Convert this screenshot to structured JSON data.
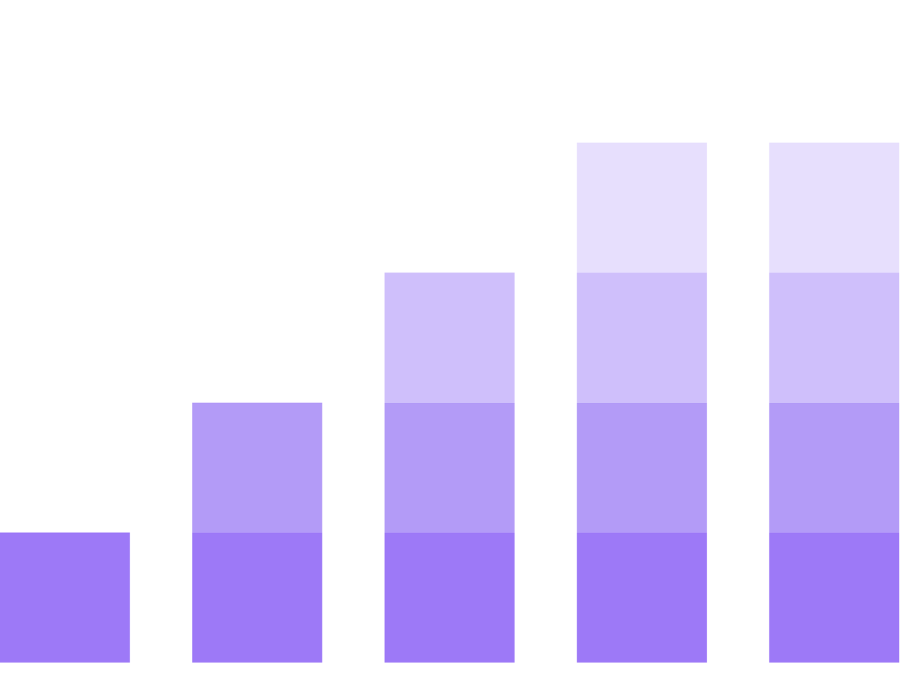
{
  "chart_data": {
    "type": "bar",
    "stacked": true,
    "categories": [
      "",
      "",
      "",
      "",
      ""
    ],
    "series": [
      {
        "values": [
          1,
          1,
          1,
          1,
          1
        ],
        "color": "#9d79f7"
      },
      {
        "values": [
          0,
          1,
          1,
          1,
          1
        ],
        "color": "#b39bf7"
      },
      {
        "values": [
          0,
          0,
          1,
          1,
          1
        ],
        "color": "#cfbffb"
      },
      {
        "values": [
          0,
          0,
          0,
          1,
          1
        ],
        "color": "#e7dffd"
      }
    ],
    "ylim": [
      0,
      5
    ],
    "grid": false,
    "legend": "none",
    "title": "",
    "xlabel": "",
    "ylabel": ""
  }
}
